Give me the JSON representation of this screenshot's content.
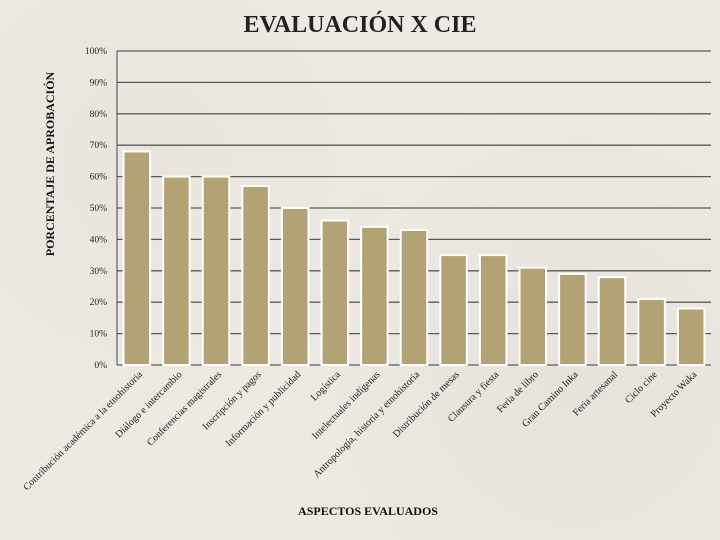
{
  "chart_data": {
    "type": "bar",
    "title": "EVALUACIÓN X CIE",
    "xlabel": "ASPECTOS EVALUADOS",
    "ylabel": "PORCENTAJE DE APROBACIÓN",
    "ylim": [
      0,
      100
    ],
    "yticks": [
      "0%",
      "10%",
      "20%",
      "30%",
      "40%",
      "50%",
      "60%",
      "70%",
      "80%",
      "90%",
      "100%"
    ],
    "grid": true,
    "bar_color": "#b3a273",
    "categories": [
      "Contribución académica a la etnohistoria",
      "Diálogo e intercambio",
      "Conferencias magistrales",
      "Inscripción y pagos",
      "Información y publicidad",
      "Logística",
      "Intelectuales indígenas",
      "Antropología, historia y etnohistoria",
      "Distribución de mesas",
      "Clausura y fiesta",
      "Feria de libro",
      "Gran Camino Inka",
      "Feria artesanal",
      "Ciclo cine",
      "Proyecto Waka"
    ],
    "values": [
      68,
      60,
      60,
      57,
      50,
      46,
      44,
      43,
      35,
      35,
      31,
      29,
      28,
      21,
      18
    ]
  }
}
